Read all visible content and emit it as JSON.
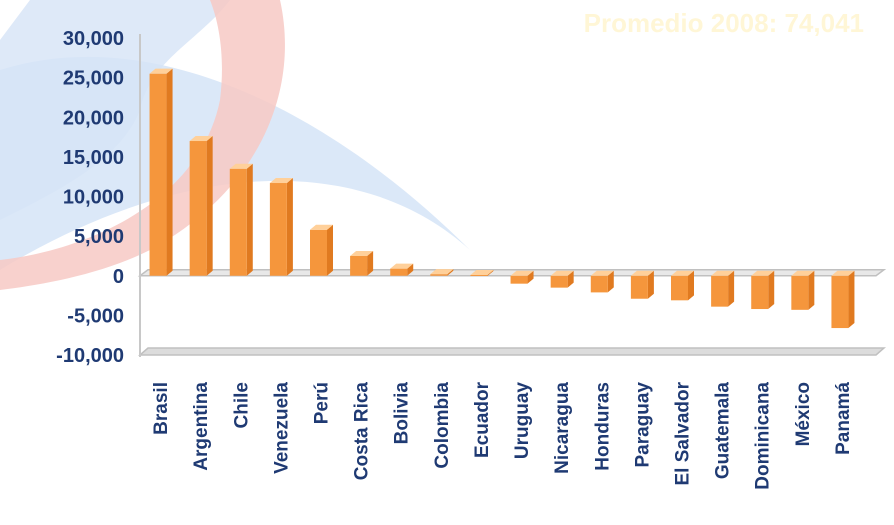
{
  "annotation": "Promedio 2008: 74,041",
  "colors": {
    "bar_front": "#f5963c",
    "bar_side": "#e07a20",
    "bar_top": "#ffd09a",
    "axis_text": "#1f3a73",
    "floor": "#c0c0c0"
  },
  "chart_data": {
    "type": "bar",
    "title": "",
    "xlabel": "",
    "ylabel": "",
    "ylim": [
      -10000,
      30000
    ],
    "yticks": [
      -10000,
      -5000,
      0,
      5000,
      10000,
      15000,
      20000,
      25000,
      30000
    ],
    "ytick_labels": [
      "-10,000",
      "-5,000",
      "0",
      "5,000",
      "10,000",
      "15,000",
      "20,000",
      "25,000",
      "30,000"
    ],
    "grid": false,
    "categories": [
      "Brasil",
      "Argentina",
      "Chile",
      "Venezuela",
      "Perú",
      "Costa Rica",
      "Bolivia",
      "Colombia",
      "Ecuador",
      "Uruguay",
      "Nicaragua",
      "Honduras",
      "Paraguay",
      "El Salvador",
      "Guatemala",
      "Dominicana",
      "México",
      "Panamá"
    ],
    "values": [
      25500,
      17000,
      13500,
      11700,
      5800,
      2500,
      900,
      200,
      100,
      -1000,
      -1500,
      -2100,
      -2900,
      -3100,
      -3900,
      -4200,
      -4300,
      -6600
    ]
  }
}
